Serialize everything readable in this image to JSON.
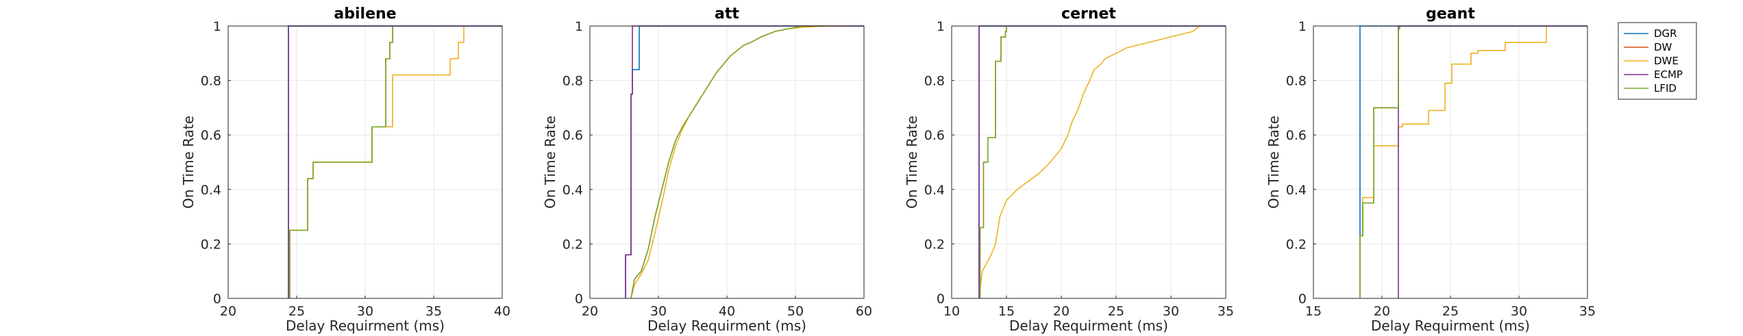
{
  "legend": {
    "placement": "top-right outside",
    "items": [
      {
        "name": "DGR",
        "color": "#0072BD"
      },
      {
        "name": "DW",
        "color": "#D95319"
      },
      {
        "name": "DWE",
        "color": "#EDB120"
      },
      {
        "name": "ECMP",
        "color": "#7E2F8E"
      },
      {
        "name": "LFID",
        "color": "#77AC30"
      }
    ]
  },
  "chart_data": [
    {
      "type": "line",
      "title": "abilene",
      "xlabel": "Delay Requirment (ms)",
      "ylabel": "On Time Rate",
      "xlim": [
        20,
        40
      ],
      "ylim": [
        0,
        1
      ],
      "xticks": [
        20,
        25,
        30,
        35,
        40
      ],
      "yticks": [
        0,
        0.2,
        0.4,
        0.6,
        0.8,
        1
      ],
      "grid": true,
      "series": [
        {
          "name": "DGR",
          "x": [
            24.4,
            24.4,
            40
          ],
          "y": [
            0,
            1,
            1
          ]
        },
        {
          "name": "DW",
          "x": [
            24.5,
            24.5,
            25.8,
            25.8,
            26.2,
            26.2,
            30.5,
            30.5,
            31.5,
            31.5,
            31.8,
            31.8,
            32.0,
            32.0
          ],
          "y": [
            0,
            0.25,
            0.25,
            0.44,
            0.44,
            0.5,
            0.5,
            0.63,
            0.63,
            0.88,
            0.88,
            0.94,
            0.94,
            1
          ]
        },
        {
          "name": "DWE",
          "x": [
            24.5,
            24.5,
            25.8,
            25.8,
            26.2,
            26.2,
            30.5,
            30.5,
            31.5,
            31.5,
            32.0,
            32.0,
            36.2,
            36.2,
            36.8,
            36.8,
            37.2,
            37.2
          ],
          "y": [
            0,
            0.25,
            0.25,
            0.44,
            0.44,
            0.5,
            0.5,
            0.63,
            0.63,
            0.63,
            0.63,
            0.82,
            0.82,
            0.88,
            0.88,
            0.94,
            0.94,
            1
          ]
        },
        {
          "name": "ECMP",
          "x": [
            24.4,
            24.4,
            40
          ],
          "y": [
            0,
            1,
            1
          ]
        },
        {
          "name": "LFID",
          "x": [
            24.5,
            24.5,
            25.8,
            25.8,
            26.2,
            26.2,
            30.5,
            30.5,
            31.5,
            31.5,
            31.8,
            31.8,
            32.0,
            32.0
          ],
          "y": [
            0,
            0.25,
            0.25,
            0.44,
            0.44,
            0.5,
            0.5,
            0.63,
            0.63,
            0.88,
            0.88,
            0.94,
            0.94,
            1
          ]
        }
      ]
    },
    {
      "type": "line",
      "title": "att",
      "xlabel": "Delay Requirment (ms)",
      "ylabel": "On Time Rate",
      "xlim": [
        20,
        60
      ],
      "ylim": [
        0,
        1
      ],
      "xticks": [
        20,
        30,
        40,
        50,
        60
      ],
      "yticks": [
        0,
        0.2,
        0.4,
        0.6,
        0.8,
        1
      ],
      "grid": true,
      "series": [
        {
          "name": "DGR",
          "x": [
            25.2,
            25.2,
            26.0,
            26.0,
            26.2,
            26.2,
            27.2,
            27.2,
            60
          ],
          "y": [
            0,
            0.16,
            0.16,
            0.75,
            0.75,
            0.84,
            0.84,
            1,
            1
          ]
        },
        {
          "name": "DW",
          "x": [
            26.0,
            26.5,
            27.5,
            28.5,
            29.5,
            30.5,
            31.5,
            32.5,
            33.5,
            34.5,
            35.5,
            36.5,
            37.5,
            38.5,
            39.5,
            40.5,
            41.5,
            42.5,
            43.5,
            45,
            47,
            49,
            51,
            53,
            55
          ],
          "y": [
            0,
            0.07,
            0.1,
            0.18,
            0.3,
            0.4,
            0.5,
            0.58,
            0.63,
            0.67,
            0.71,
            0.75,
            0.79,
            0.83,
            0.86,
            0.89,
            0.91,
            0.93,
            0.94,
            0.96,
            0.98,
            0.99,
            1,
            1,
            1
          ]
        },
        {
          "name": "DWE",
          "x": [
            26.0,
            26.5,
            27.5,
            28.5,
            29.5,
            30.5,
            31.5,
            32.5,
            33.5,
            34.5,
            35.5,
            36.5,
            37.5,
            38.5,
            39.5,
            40.5,
            41.5,
            42.5,
            43.5,
            45,
            47,
            49,
            51,
            53,
            55,
            57,
            58
          ],
          "y": [
            0,
            0.05,
            0.09,
            0.14,
            0.24,
            0.35,
            0.47,
            0.56,
            0.62,
            0.67,
            0.71,
            0.75,
            0.79,
            0.83,
            0.86,
            0.89,
            0.91,
            0.93,
            0.94,
            0.96,
            0.98,
            0.99,
            0.995,
            0.998,
            1,
            1,
            1
          ]
        },
        {
          "name": "ECMP",
          "x": [
            25.2,
            25.2,
            26.0,
            26.0,
            26.2,
            26.2,
            60
          ],
          "y": [
            0,
            0.16,
            0.16,
            0.75,
            0.75,
            1,
            1
          ]
        },
        {
          "name": "LFID",
          "x": [
            26.0,
            26.5,
            27.5,
            28.5,
            29.5,
            30.5,
            31.5,
            32.5,
            33.5,
            34.5,
            35.5,
            36.5,
            37.5,
            38.5,
            39.5,
            40.5,
            41.5,
            42.5,
            43.5,
            45,
            47,
            49,
            51,
            53,
            55
          ],
          "y": [
            0,
            0.07,
            0.1,
            0.18,
            0.3,
            0.4,
            0.5,
            0.58,
            0.63,
            0.67,
            0.71,
            0.75,
            0.79,
            0.83,
            0.86,
            0.89,
            0.91,
            0.93,
            0.94,
            0.96,
            0.98,
            0.99,
            1,
            1,
            1
          ]
        }
      ]
    },
    {
      "type": "line",
      "title": "cernet",
      "xlabel": "Delay Requirment (ms)",
      "ylabel": "On Time Rate",
      "xlim": [
        10,
        35
      ],
      "ylim": [
        0,
        1
      ],
      "xticks": [
        10,
        15,
        20,
        25,
        30,
        35
      ],
      "yticks": [
        0,
        0.2,
        0.4,
        0.6,
        0.8,
        1
      ],
      "grid": true,
      "series": [
        {
          "name": "DGR",
          "x": [
            12.5,
            12.5,
            35
          ],
          "y": [
            0,
            1,
            1
          ]
        },
        {
          "name": "DW",
          "x": [
            12.6,
            12.6,
            12.9,
            12.9,
            13.3,
            13.3,
            14.0,
            14.0,
            14.5,
            14.5,
            14.9,
            14.9,
            15.0,
            15.0
          ],
          "y": [
            0,
            0.26,
            0.26,
            0.5,
            0.5,
            0.59,
            0.59,
            0.87,
            0.87,
            0.96,
            0.96,
            0.98,
            0.98,
            1
          ]
        },
        {
          "name": "DWE",
          "x": [
            12.5,
            12.8,
            13.2,
            13.6,
            14.0,
            14.4,
            15.0,
            16.0,
            17.0,
            18.0,
            19.0,
            20.0,
            20.6,
            21.0,
            21.6,
            22.0,
            22.6,
            23.0,
            23.6,
            24.0,
            25.0,
            26.0,
            27.0,
            28.0,
            29.0,
            30.0,
            31.0,
            32.0,
            32.6
          ],
          "y": [
            0,
            0.1,
            0.13,
            0.16,
            0.2,
            0.3,
            0.36,
            0.4,
            0.43,
            0.46,
            0.5,
            0.55,
            0.6,
            0.65,
            0.7,
            0.75,
            0.8,
            0.84,
            0.86,
            0.88,
            0.9,
            0.92,
            0.93,
            0.94,
            0.95,
            0.96,
            0.97,
            0.98,
            1
          ]
        },
        {
          "name": "ECMP",
          "x": [
            12.5,
            12.5,
            35
          ],
          "y": [
            0,
            1,
            1
          ]
        },
        {
          "name": "LFID",
          "x": [
            12.6,
            12.6,
            12.9,
            12.9,
            13.3,
            13.3,
            14.0,
            14.0,
            14.5,
            14.5,
            14.9,
            14.9,
            15.0,
            15.0
          ],
          "y": [
            0,
            0.26,
            0.26,
            0.5,
            0.5,
            0.59,
            0.59,
            0.87,
            0.87,
            0.96,
            0.96,
            0.98,
            0.98,
            1
          ]
        }
      ]
    },
    {
      "type": "line",
      "title": "geant",
      "xlabel": "Delay Requirment (ms)",
      "ylabel": "On Time Rate",
      "xlim": [
        15,
        35
      ],
      "ylim": [
        0,
        1
      ],
      "xticks": [
        15,
        20,
        25,
        30,
        35
      ],
      "yticks": [
        0,
        0.2,
        0.4,
        0.6,
        0.8,
        1
      ],
      "grid": true,
      "series": [
        {
          "name": "DGR",
          "x": [
            18.4,
            18.4,
            35
          ],
          "y": [
            0,
            1,
            1
          ]
        },
        {
          "name": "DW",
          "x": [
            18.4,
            18.4,
            18.6,
            18.6,
            19.4,
            19.4,
            21.2,
            21.2,
            21.3,
            21.3
          ],
          "y": [
            0,
            0.23,
            0.23,
            0.35,
            0.35,
            0.7,
            0.7,
            0.99,
            0.99,
            1
          ]
        },
        {
          "name": "DWE",
          "x": [
            18.4,
            18.4,
            18.6,
            18.6,
            19.4,
            19.4,
            21.2,
            21.2,
            21.5,
            21.5,
            23.4,
            23.4,
            24.6,
            24.6,
            25.1,
            25.1,
            26.5,
            26.5,
            27.0,
            27.0,
            29.0,
            29.0,
            32.0,
            32.0
          ],
          "y": [
            0,
            0.23,
            0.23,
            0.37,
            0.37,
            0.56,
            0.56,
            0.63,
            0.63,
            0.64,
            0.64,
            0.69,
            0.69,
            0.79,
            0.79,
            0.86,
            0.86,
            0.9,
            0.9,
            0.91,
            0.91,
            0.94,
            0.94,
            1
          ]
        },
        {
          "name": "ECMP",
          "x": [
            21.2,
            21.2,
            35
          ],
          "y": [
            0,
            1,
            1
          ]
        },
        {
          "name": "LFID",
          "x": [
            18.4,
            18.4,
            18.6,
            18.6,
            19.4,
            19.4,
            21.2,
            21.2,
            21.3,
            21.3
          ],
          "y": [
            0,
            0.23,
            0.23,
            0.35,
            0.35,
            0.7,
            0.7,
            0.99,
            0.99,
            1
          ]
        }
      ]
    }
  ]
}
